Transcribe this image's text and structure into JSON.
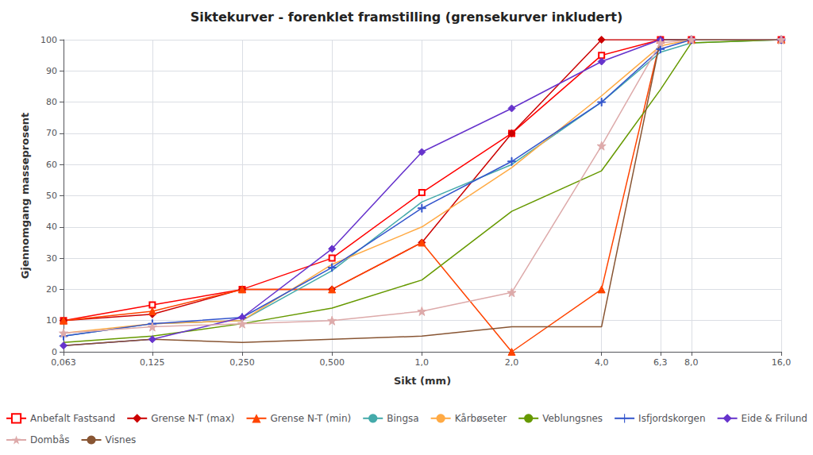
{
  "chart_data": {
    "type": "line",
    "title": "Siktekurver - forenklet framstilling (grensekurver inkludert)",
    "x_label": "Sikt (mm)",
    "y_label": "Gjennomgang masseprosent",
    "log": "x",
    "grid": true,
    "legend": "bottom",
    "x": [
      0.063,
      0.125,
      0.25,
      0.5,
      1.0,
      2.0,
      4.0,
      6.3,
      8.0,
      16.0
    ],
    "xlim": [
      0.063,
      16.0
    ],
    "xticks": [
      {
        "value": 0.063,
        "label": "0,063"
      },
      {
        "value": 0.125,
        "label": "0,125"
      },
      {
        "value": 0.25,
        "label": "0,250"
      },
      {
        "value": 0.5,
        "label": "0,500"
      },
      {
        "value": 1.0,
        "label": "1,0"
      },
      {
        "value": 2.0,
        "label": "2,0"
      },
      {
        "value": 4.0,
        "label": "4,0"
      },
      {
        "value": 6.3,
        "label": "6,3"
      },
      {
        "value": 8.0,
        "label": "8,0"
      },
      {
        "value": 16.0,
        "label": "16,0"
      }
    ],
    "ylim": [
      0,
      100
    ],
    "yticks": [
      0,
      10,
      20,
      30,
      40,
      50,
      60,
      70,
      80,
      90,
      100
    ],
    "series": [
      {
        "name": "Anbefalt Fastsand",
        "color": "#FF0000",
        "marker": "open_square",
        "values": [
          10,
          15,
          20,
          30,
          51,
          70,
          95,
          100,
          100,
          100
        ]
      },
      {
        "name": "Grense N-T (max)",
        "color": "#CC0000",
        "marker": "diamond",
        "values": [
          10,
          12,
          20,
          20,
          35,
          70,
          100,
          100,
          100,
          100
        ]
      },
      {
        "name": "Grense N-T (min)",
        "color": "#FF4400",
        "marker": "triangle",
        "values": [
          10,
          13,
          20,
          20,
          35,
          0,
          20,
          100,
          100,
          100
        ]
      },
      {
        "name": "Bingsa",
        "color": "#44AAAA",
        "marker": "none",
        "values": [
          5,
          9,
          10,
          26,
          48,
          60,
          80,
          96,
          99,
          100
        ]
      },
      {
        "name": "Kårbøseter",
        "color": "#FFAA44",
        "marker": "none",
        "values": [
          6,
          9,
          10,
          28,
          40,
          59,
          82,
          98,
          100,
          100
        ]
      },
      {
        "name": "Veblungsnes",
        "color": "#669900",
        "marker": "none",
        "values": [
          3,
          5,
          9,
          14,
          23,
          45,
          58,
          84,
          99,
          100
        ]
      },
      {
        "name": "Isfjordskorgen",
        "color": "#3355CC",
        "marker": "plus",
        "values": [
          5,
          9,
          11,
          27,
          46,
          61,
          80,
          97,
          100,
          100
        ]
      },
      {
        "name": "Eide & Frilund",
        "color": "#6633CC",
        "marker": "diamond",
        "values": [
          2,
          4,
          11,
          33,
          64,
          78,
          93,
          100,
          100,
          100
        ]
      },
      {
        "name": "Dombås",
        "color": "#DDAAAA",
        "marker": "star",
        "values": [
          6,
          8,
          9,
          10,
          13,
          19,
          66,
          99,
          100,
          100
        ]
      },
      {
        "name": "Visnes",
        "color": "#885533",
        "marker": "none",
        "values": [
          2,
          4,
          3,
          4,
          5,
          8,
          8,
          100,
          100,
          100
        ]
      }
    ]
  }
}
